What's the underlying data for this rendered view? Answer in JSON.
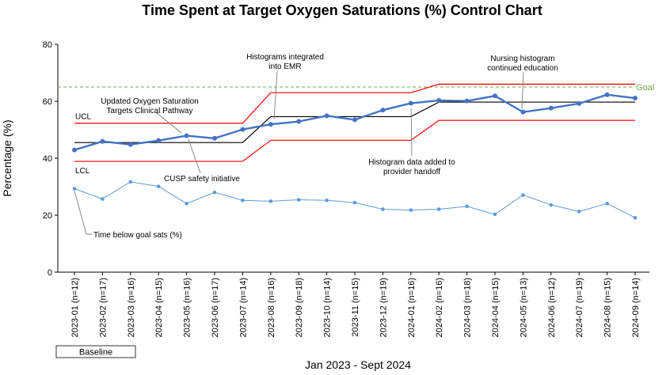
{
  "chart_data": {
    "type": "line",
    "title": "Time Spent at Target Oxygen Saturations (%) Control Chart",
    "xlabel": "Jan 2023 - Sept 2024",
    "ylabel": "Percentage (%)",
    "ylim": [
      0,
      80
    ],
    "yticks": [
      "0",
      "20",
      "40",
      "60",
      "80"
    ],
    "grid": false,
    "categories": [
      "2023-01 (n=12)",
      "2023-02 (n=17)",
      "2023-03 (n=16)",
      "2023-04 (n=15)",
      "2023-05 (n=16)",
      "2023-06 (n=17)",
      "2023-07 (n=14)",
      "2023-08 (n=16)",
      "2023-09 (n=18)",
      "2023-10 (n=14)",
      "2023-11 (n=15)",
      "2023-12 (n=19)",
      "2024-01 (n=16)",
      "2024-02 (n=16)",
      "2024-03 (n=18)",
      "2024-04 (n=15)",
      "2024-05 (n=13)",
      "2024-06 (n=12)",
      "2024-07 (n=19)",
      "2024-08 (n=15)",
      "2024-09 (n=14)"
    ],
    "series": [
      {
        "name": "",
        "role": "main",
        "color": "#4472c4",
        "values": [
          42.9,
          45.9,
          44.8,
          46.2,
          47.9,
          47,
          50.1,
          51.9,
          52.9,
          54.9,
          53.5,
          56.9,
          59.3,
          60.3,
          60.1,
          61.9,
          56.2,
          57.6,
          59.2,
          62.3,
          61.1
        ]
      },
      {
        "name": "Time below goal sats (%)",
        "role": "secondary",
        "color": "#5b9bd5",
        "values": [
          29.3,
          25.7,
          31.7,
          30.1,
          24.1,
          28,
          25.2,
          24.9,
          25.4,
          25.2,
          24.4,
          22.1,
          21.8,
          22.1,
          23.1,
          20.3,
          27.1,
          23.6,
          21.3,
          24.1,
          19.1
        ]
      },
      {
        "name": "UCL",
        "role": "ucl",
        "color": "#ff0000",
        "values": [
          52.3,
          52.3,
          52.3,
          52.3,
          52.3,
          52.3,
          52.3,
          63.0,
          63.0,
          63.0,
          63.0,
          63.0,
          63.0,
          66.0,
          66.0,
          66.0,
          66.0,
          66.0,
          66.0,
          66.0,
          66.0
        ]
      },
      {
        "name": "",
        "role": "center",
        "color": "#000000",
        "values": [
          45.5,
          45.5,
          45.5,
          45.5,
          45.5,
          45.5,
          45.5,
          54.6,
          54.6,
          54.6,
          54.6,
          54.6,
          54.6,
          59.7,
          59.7,
          59.7,
          59.7,
          59.7,
          59.7,
          59.7,
          59.7
        ]
      },
      {
        "name": "LCL",
        "role": "lcl",
        "color": "#ff0000",
        "values": [
          38.9,
          38.9,
          38.9,
          38.9,
          38.9,
          38.9,
          38.9,
          46.3,
          46.3,
          46.3,
          46.3,
          46.3,
          46.3,
          53.3,
          53.3,
          53.3,
          53.3,
          53.3,
          53.3,
          53.3,
          53.3
        ]
      }
    ],
    "goal": {
      "label": "Goal",
      "value": 65,
      "color": "#70ad47"
    },
    "annotations": [
      {
        "id": "updated",
        "lines": [
          "Updated Oxygen Saturation",
          "Targets Clinical Pathway"
        ],
        "points_to": "2023-05 (n=16)"
      },
      {
        "id": "cusp",
        "lines": [
          "CUSP safety initiative"
        ],
        "points_to": "2023-05 (n=16)"
      },
      {
        "id": "emr",
        "lines": [
          "Histograms integrated",
          "into EMR"
        ],
        "points_to": "2023-08 (n=16)"
      },
      {
        "id": "handoff",
        "lines": [
          "Histogram data added to",
          "provider handoff"
        ],
        "points_to": "2024-01 (n=16)"
      },
      {
        "id": "nursing",
        "lines": [
          "Nursing histogram",
          "continued education"
        ],
        "points_to": "2024-05 (n=13)"
      },
      {
        "id": "below",
        "lines": [
          "Time below goal sats (%)"
        ],
        "points_to": "2023-01 (n=12)"
      }
    ],
    "baseline_label": "Baseline"
  }
}
